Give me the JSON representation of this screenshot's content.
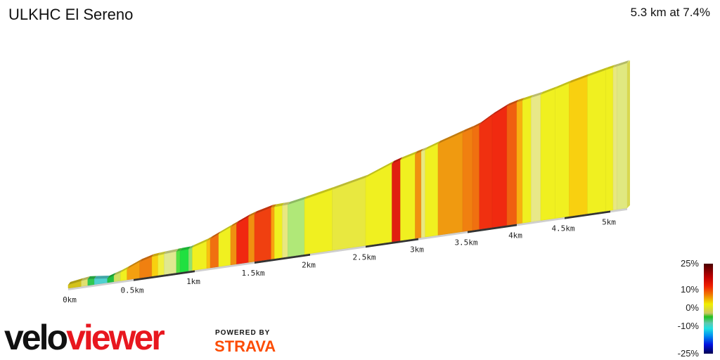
{
  "header": {
    "title": "ULKHC El Sereno",
    "summary": "5.3 km at 7.4%"
  },
  "chart_data": {
    "type": "area",
    "title": "ULKHC El Sereno",
    "xlabel": "",
    "ylabel": "",
    "x_unit": "km",
    "xlim": [
      0,
      5.3
    ],
    "x_ticks": [
      "0km",
      "0.5km",
      "1km",
      "1.5km",
      "2km",
      "2.5km",
      "3km",
      "3.5km",
      "4km",
      "4.5km",
      "5km"
    ],
    "profile": {
      "km": [
        0,
        0.15,
        0.3,
        0.4,
        0.6,
        0.8,
        0.95,
        1.1,
        1.3,
        1.45,
        1.6,
        1.8,
        2.0,
        2.3,
        2.6,
        2.75,
        2.85,
        3.1,
        3.3,
        3.6,
        3.85,
        4.0,
        4.3,
        4.6,
        5.0,
        5.3
      ],
      "elevation_gain_m": [
        0,
        8,
        2,
        13,
        42,
        48,
        50,
        65,
        94,
        115,
        131,
        133,
        144,
        163,
        183,
        204,
        213,
        231,
        250,
        273,
        312,
        323,
        337,
        358,
        379,
        387
      ]
    },
    "segments": [
      [
        0,
        0.1,
        "#d4c21a"
      ],
      [
        0.1,
        0.15,
        "#e0e070"
      ],
      [
        0.15,
        0.2,
        "#30c850"
      ],
      [
        0.2,
        0.3,
        "#50d0d0"
      ],
      [
        0.3,
        0.35,
        "#20c040"
      ],
      [
        0.35,
        0.4,
        "#d0e060"
      ],
      [
        0.4,
        0.45,
        "#f0f020"
      ],
      [
        0.45,
        0.55,
        "#f4a010"
      ],
      [
        0.55,
        0.65,
        "#f08010"
      ],
      [
        0.65,
        0.7,
        "#f8d010"
      ],
      [
        0.7,
        0.75,
        "#f0f040"
      ],
      [
        0.75,
        0.85,
        "#e0e890"
      ],
      [
        0.85,
        0.88,
        "#50e040"
      ],
      [
        0.88,
        0.95,
        "#20e040"
      ],
      [
        0.95,
        0.98,
        "#90e070"
      ],
      [
        0.98,
        1.1,
        "#f0f020"
      ],
      [
        1.1,
        1.13,
        "#f8c010"
      ],
      [
        1.13,
        1.2,
        "#f07010"
      ],
      [
        1.2,
        1.3,
        "#f0f020"
      ],
      [
        1.3,
        1.35,
        "#f09010"
      ],
      [
        1.35,
        1.45,
        "#f02810"
      ],
      [
        1.45,
        1.5,
        "#f09010"
      ],
      [
        1.5,
        1.65,
        "#f04010"
      ],
      [
        1.65,
        1.68,
        "#f8a010"
      ],
      [
        1.68,
        1.75,
        "#f0f020"
      ],
      [
        1.75,
        1.8,
        "#e8e880"
      ],
      [
        1.8,
        1.95,
        "#b0e878"
      ],
      [
        1.95,
        2.2,
        "#f0f020"
      ],
      [
        2.2,
        2.5,
        "#e8e840"
      ],
      [
        2.5,
        2.75,
        "#f0f020"
      ],
      [
        2.75,
        2.83,
        "#e02010"
      ],
      [
        2.83,
        2.97,
        "#f0f020"
      ],
      [
        2.97,
        3.03,
        "#f09010"
      ],
      [
        3.03,
        3.07,
        "#e8e880"
      ],
      [
        3.07,
        3.2,
        "#f0f020"
      ],
      [
        3.2,
        3.45,
        "#f09a10"
      ],
      [
        3.45,
        3.55,
        "#f08010"
      ],
      [
        3.55,
        3.62,
        "#f07010"
      ],
      [
        3.62,
        3.75,
        "#f03010"
      ],
      [
        3.75,
        3.9,
        "#f02a10"
      ],
      [
        3.9,
        4.0,
        "#f06010"
      ],
      [
        4.0,
        4.06,
        "#f8b010"
      ],
      [
        4.06,
        4.15,
        "#f0f020"
      ],
      [
        4.15,
        4.25,
        "#e8e888"
      ],
      [
        4.25,
        4.4,
        "#f0f020"
      ],
      [
        4.4,
        4.55,
        "#f0f020"
      ],
      [
        4.55,
        4.75,
        "#f8d010"
      ],
      [
        4.75,
        4.95,
        "#f0f020"
      ],
      [
        4.95,
        5.05,
        "#f0f020"
      ],
      [
        5.05,
        5.12,
        "#e8e880"
      ],
      [
        5.12,
        5.3,
        "#e0e880"
      ]
    ]
  },
  "legend": {
    "labels": [
      "25%",
      "10%",
      "0%",
      "-10%",
      "-25%"
    ]
  },
  "branding": {
    "logo_left": "velo",
    "logo_right": "viewer",
    "powered_by": "POWERED BY",
    "strava": "STRAVA"
  }
}
